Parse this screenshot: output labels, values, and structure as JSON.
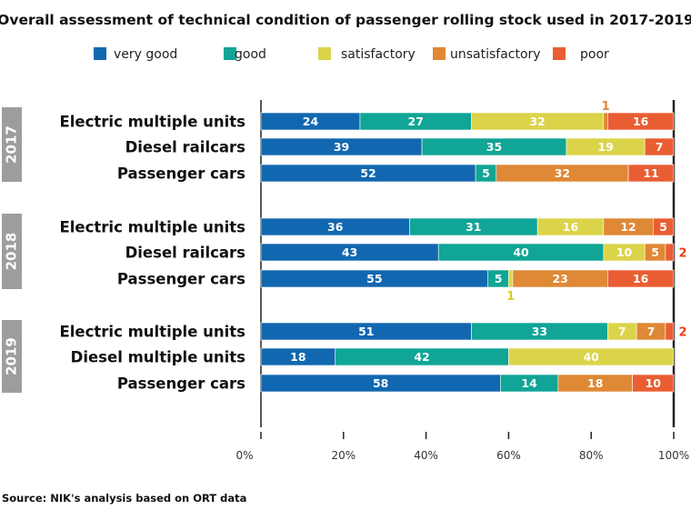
{
  "chart_data": {
    "type": "bar",
    "orientation": "horizontal",
    "stacked": true,
    "title": "Overall assessment of technical condition of passenger rolling stock used in 2017-2019",
    "source": "Source: NIK's analysis based on ORT data",
    "legend_placement": "top",
    "series_names": [
      "very good",
      "good",
      "satisfactory",
      "unsatisfactory",
      "poor"
    ],
    "colors": [
      "#1268b0",
      "#10a596",
      "#dbd44a",
      "#df8835",
      "#e95e32"
    ],
    "xlim": [
      0,
      100
    ],
    "ticks": [
      "0%",
      "20%",
      "40%",
      "60%",
      "80%",
      "100%"
    ],
    "groups": [
      {
        "year": "2017",
        "rows": [
          {
            "label": "Electric multiple units",
            "values": [
              24,
              27,
              32,
              1,
              16
            ]
          },
          {
            "label": "Diesel railcars",
            "values": [
              39,
              35,
              19,
              0,
              7
            ]
          },
          {
            "label": "Passenger cars",
            "values": [
              52,
              5,
              0,
              32,
              11
            ]
          }
        ]
      },
      {
        "year": "2018",
        "rows": [
          {
            "label": "Electric multiple units",
            "values": [
              36,
              31,
              16,
              12,
              5
            ]
          },
          {
            "label": "Diesel railcars",
            "values": [
              43,
              40,
              10,
              5,
              2
            ]
          },
          {
            "label": "Passenger cars",
            "values": [
              55,
              5,
              1,
              23,
              16
            ]
          }
        ]
      },
      {
        "year": "2019",
        "rows": [
          {
            "label": "Electric multiple units",
            "values": [
              51,
              33,
              7,
              7,
              2
            ]
          },
          {
            "label": "Diesel multiple units",
            "values": [
              18,
              42,
              40,
              0,
              0
            ]
          },
          {
            "label": "Passenger cars",
            "values": [
              58,
              14,
              0,
              18,
              10
            ]
          }
        ]
      }
    ]
  }
}
